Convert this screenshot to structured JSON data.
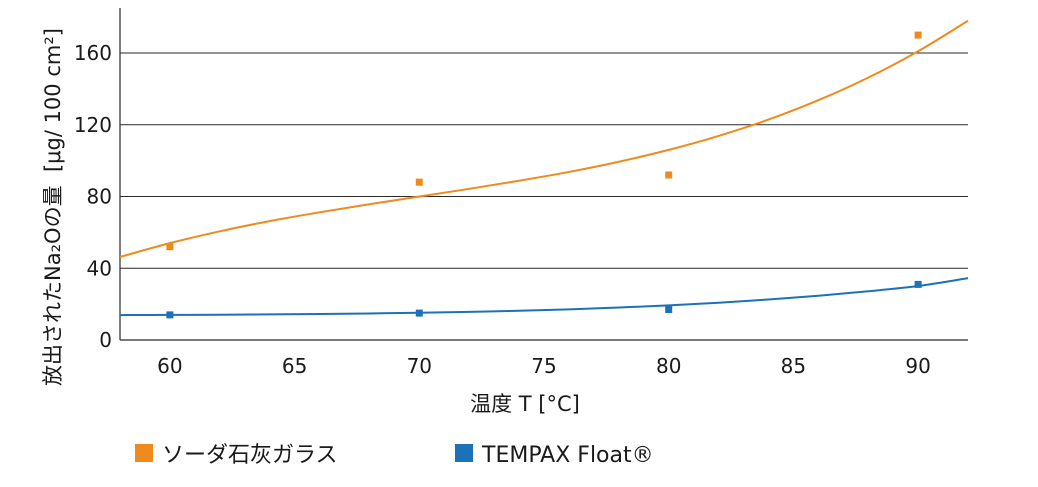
{
  "chart_data": {
    "type": "scatter",
    "xlabel": "温度 T [°C]",
    "ylabel": "放出されたNa₂Oの量  [μg/ 100 cm²]",
    "xlim": [
      58,
      92
    ],
    "ylim": [
      0,
      184
    ],
    "xticks": [
      60,
      65,
      70,
      75,
      80,
      85,
      90
    ],
    "yticks": [
      0,
      40,
      80,
      120,
      160
    ],
    "grid": "horizontal",
    "legend": "bottom-left",
    "series": [
      {
        "name": "ソーダ石灰ガラス",
        "color": "#EE8A1E",
        "x": [
          60,
          70,
          80,
          90
        ],
        "y": [
          52,
          88,
          92,
          170
        ],
        "trend": {
          "x": [
            58,
            60,
            62,
            64,
            66,
            68,
            70,
            72,
            74,
            76,
            78,
            80,
            82,
            84,
            86,
            88,
            90,
            92
          ],
          "y": [
            46.3,
            54.0,
            60.6,
            66.3,
            71.2,
            75.7,
            80.0,
            84.3,
            88.8,
            93.7,
            99.4,
            106.0,
            113.8,
            122.9,
            133.7,
            146.3,
            161.0,
            178.0
          ]
        }
      },
      {
        "name": "TEMPAX Float®",
        "color": "#1B72B8",
        "x": [
          60,
          70,
          80,
          90
        ],
        "y": [
          14,
          15,
          17,
          31
        ],
        "trend": {
          "x": [
            58,
            60,
            62,
            64,
            66,
            68,
            70,
            72,
            74,
            76,
            78,
            80,
            82,
            84,
            86,
            88,
            90,
            92
          ],
          "y": [
            13.9,
            14.0,
            14.1,
            14.3,
            14.5,
            14.8,
            15.2,
            15.7,
            16.3,
            17.1,
            18.1,
            19.3,
            20.8,
            22.6,
            24.7,
            27.2,
            30.1,
            34.5
          ]
        }
      }
    ]
  }
}
